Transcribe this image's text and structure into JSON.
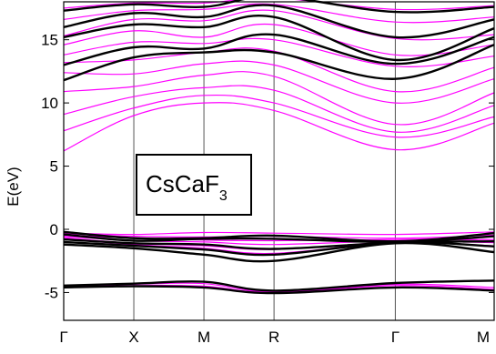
{
  "chart_data": {
    "type": "line",
    "ylabel": "E(eV)",
    "ylim": [
      -7.2,
      18
    ],
    "yticks": [
      -5,
      0,
      5,
      10,
      15
    ],
    "kpoints": [
      {
        "label": "Γ",
        "x": 0
      },
      {
        "label": "X",
        "x": 1
      },
      {
        "label": "M",
        "x": 2
      },
      {
        "label": "R",
        "x": 3
      },
      {
        "label": "Γ",
        "x": 4.73
      },
      {
        "label": "M",
        "x": 6.14
      }
    ],
    "annotation": {
      "main": "CsCaF",
      "sub": "3"
    },
    "series": [
      {
        "color": "#ff00ff",
        "bands": [
          [
            -4.5,
            -4.35,
            -4.3,
            -4.95,
            -4.35,
            -4.6
          ],
          [
            -4.55,
            -4.45,
            -4.5,
            -5.0,
            -4.45,
            -4.75
          ],
          [
            -0.35,
            -0.55,
            -0.6,
            -0.55,
            -0.7,
            -0.45
          ],
          [
            -0.45,
            -0.7,
            -0.85,
            -0.9,
            -0.8,
            -0.6
          ],
          [
            -0.55,
            -0.9,
            -1.0,
            -1.2,
            -0.9,
            -0.8
          ],
          [
            -0.65,
            -1.1,
            -1.3,
            -1.6,
            -1.0,
            -1.05
          ],
          [
            -0.75,
            -1.2,
            -1.5,
            -1.9,
            -1.05,
            -1.3
          ],
          [
            -0.3,
            -0.4,
            -0.25,
            -0.3,
            -0.4,
            -0.2
          ],
          [
            6.2,
            9.0,
            10.0,
            9.4,
            6.3,
            8.4
          ],
          [
            7.8,
            9.6,
            10.6,
            10.0,
            7.3,
            8.9
          ],
          [
            9.1,
            10.5,
            11.2,
            11.0,
            7.7,
            9.8
          ],
          [
            10.9,
            11.3,
            12.2,
            12.1,
            8.3,
            10.8
          ],
          [
            12.4,
            12.3,
            13.1,
            13.0,
            10.0,
            11.9
          ],
          [
            13.2,
            13.4,
            14.0,
            14.1,
            10.9,
            12.8
          ],
          [
            13.8,
            14.8,
            14.7,
            15.0,
            12.9,
            13.7
          ],
          [
            14.6,
            15.7,
            15.2,
            16.2,
            13.8,
            14.6
          ],
          [
            15.3,
            16.6,
            16.5,
            17.3,
            15.1,
            15.4
          ],
          [
            16.6,
            17.3,
            17.4,
            17.8,
            16.4,
            16.8
          ],
          [
            17.5,
            17.9,
            17.9,
            18.3,
            17.4,
            17.7
          ]
        ]
      },
      {
        "color": "#000000",
        "bands": [
          [
            -4.45,
            -4.3,
            -4.15,
            -4.85,
            -4.25,
            -4.05
          ],
          [
            -4.6,
            -4.5,
            -4.6,
            -5.05,
            -4.6,
            -4.85
          ],
          [
            -0.2,
            -0.7,
            -0.7,
            -0.5,
            -0.95,
            -0.3
          ],
          [
            -0.4,
            -0.9,
            -0.75,
            -0.75,
            -1.0,
            -0.55
          ],
          [
            -0.8,
            -1.1,
            -1.2,
            -1.55,
            -1.05,
            -0.95
          ],
          [
            -1.0,
            -1.3,
            -1.6,
            -2.0,
            -1.05,
            -1.35
          ],
          [
            -1.2,
            -1.5,
            -2.0,
            -2.5,
            -1.1,
            -1.8
          ],
          [
            11.8,
            13.6,
            14.0,
            14.0,
            11.9,
            14.6
          ],
          [
            13.0,
            14.4,
            14.3,
            15.4,
            13.1,
            15.2
          ],
          [
            15.2,
            16.2,
            16.0,
            16.8,
            13.4,
            15.9
          ],
          [
            16.0,
            17.1,
            16.8,
            17.7,
            15.2,
            16.6
          ],
          [
            17.3,
            17.8,
            17.6,
            18.4,
            17.2,
            17.6
          ]
        ]
      }
    ]
  }
}
